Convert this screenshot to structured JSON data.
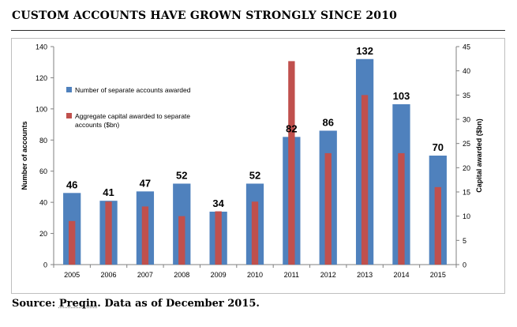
{
  "page": {
    "title": "CUSTOM ACCOUNTS HAVE GROWN STRONGLY SINCE 2010",
    "source_prefix": "Source: ",
    "source_name": "Preqin",
    "source_suffix": ". Data as of December 2015."
  },
  "colors": {
    "bar_blue": "#4f81bd",
    "bar_red": "#c0504d",
    "axis": "#808080",
    "grid_frame": "#bfbfbf",
    "text": "#000000"
  },
  "chart_data": {
    "type": "bar",
    "title": "",
    "xlabel": "",
    "ylabel": "Number of accounts",
    "y2label": "Capital awarded ($bn)",
    "ylim": [
      0,
      140
    ],
    "y2lim": [
      0,
      45
    ],
    "y_ticks": [
      0,
      20,
      40,
      60,
      80,
      100,
      120,
      140
    ],
    "y2_ticks": [
      0,
      5,
      10,
      15,
      20,
      25,
      30,
      35,
      40,
      45
    ],
    "grid": false,
    "legend_position": "top-left",
    "categories": [
      "2005",
      "2006",
      "2007",
      "2008",
      "2009",
      "2010",
      "2011",
      "2012",
      "2013",
      "2014",
      "2015"
    ],
    "series": [
      {
        "name": "Number of separate accounts awarded",
        "axis": "left",
        "color": "#4f81bd",
        "values": [
          46,
          41,
          47,
          52,
          34,
          52,
          82,
          86,
          132,
          103,
          70
        ],
        "data_labels": [
          "46",
          "41",
          "47",
          "52",
          "34",
          "52",
          "82",
          "86",
          "132",
          "103",
          "70"
        ]
      },
      {
        "name": "Aggregate capital awarded to separate accounts ($bn)",
        "axis": "right",
        "color": "#c0504d",
        "values": [
          9,
          13,
          12,
          10,
          11,
          13,
          42,
          23,
          35,
          23,
          16
        ]
      }
    ],
    "legend": [
      "Number of separate accounts awarded",
      "Aggregate capital awarded to separate accounts ($bn)"
    ]
  }
}
